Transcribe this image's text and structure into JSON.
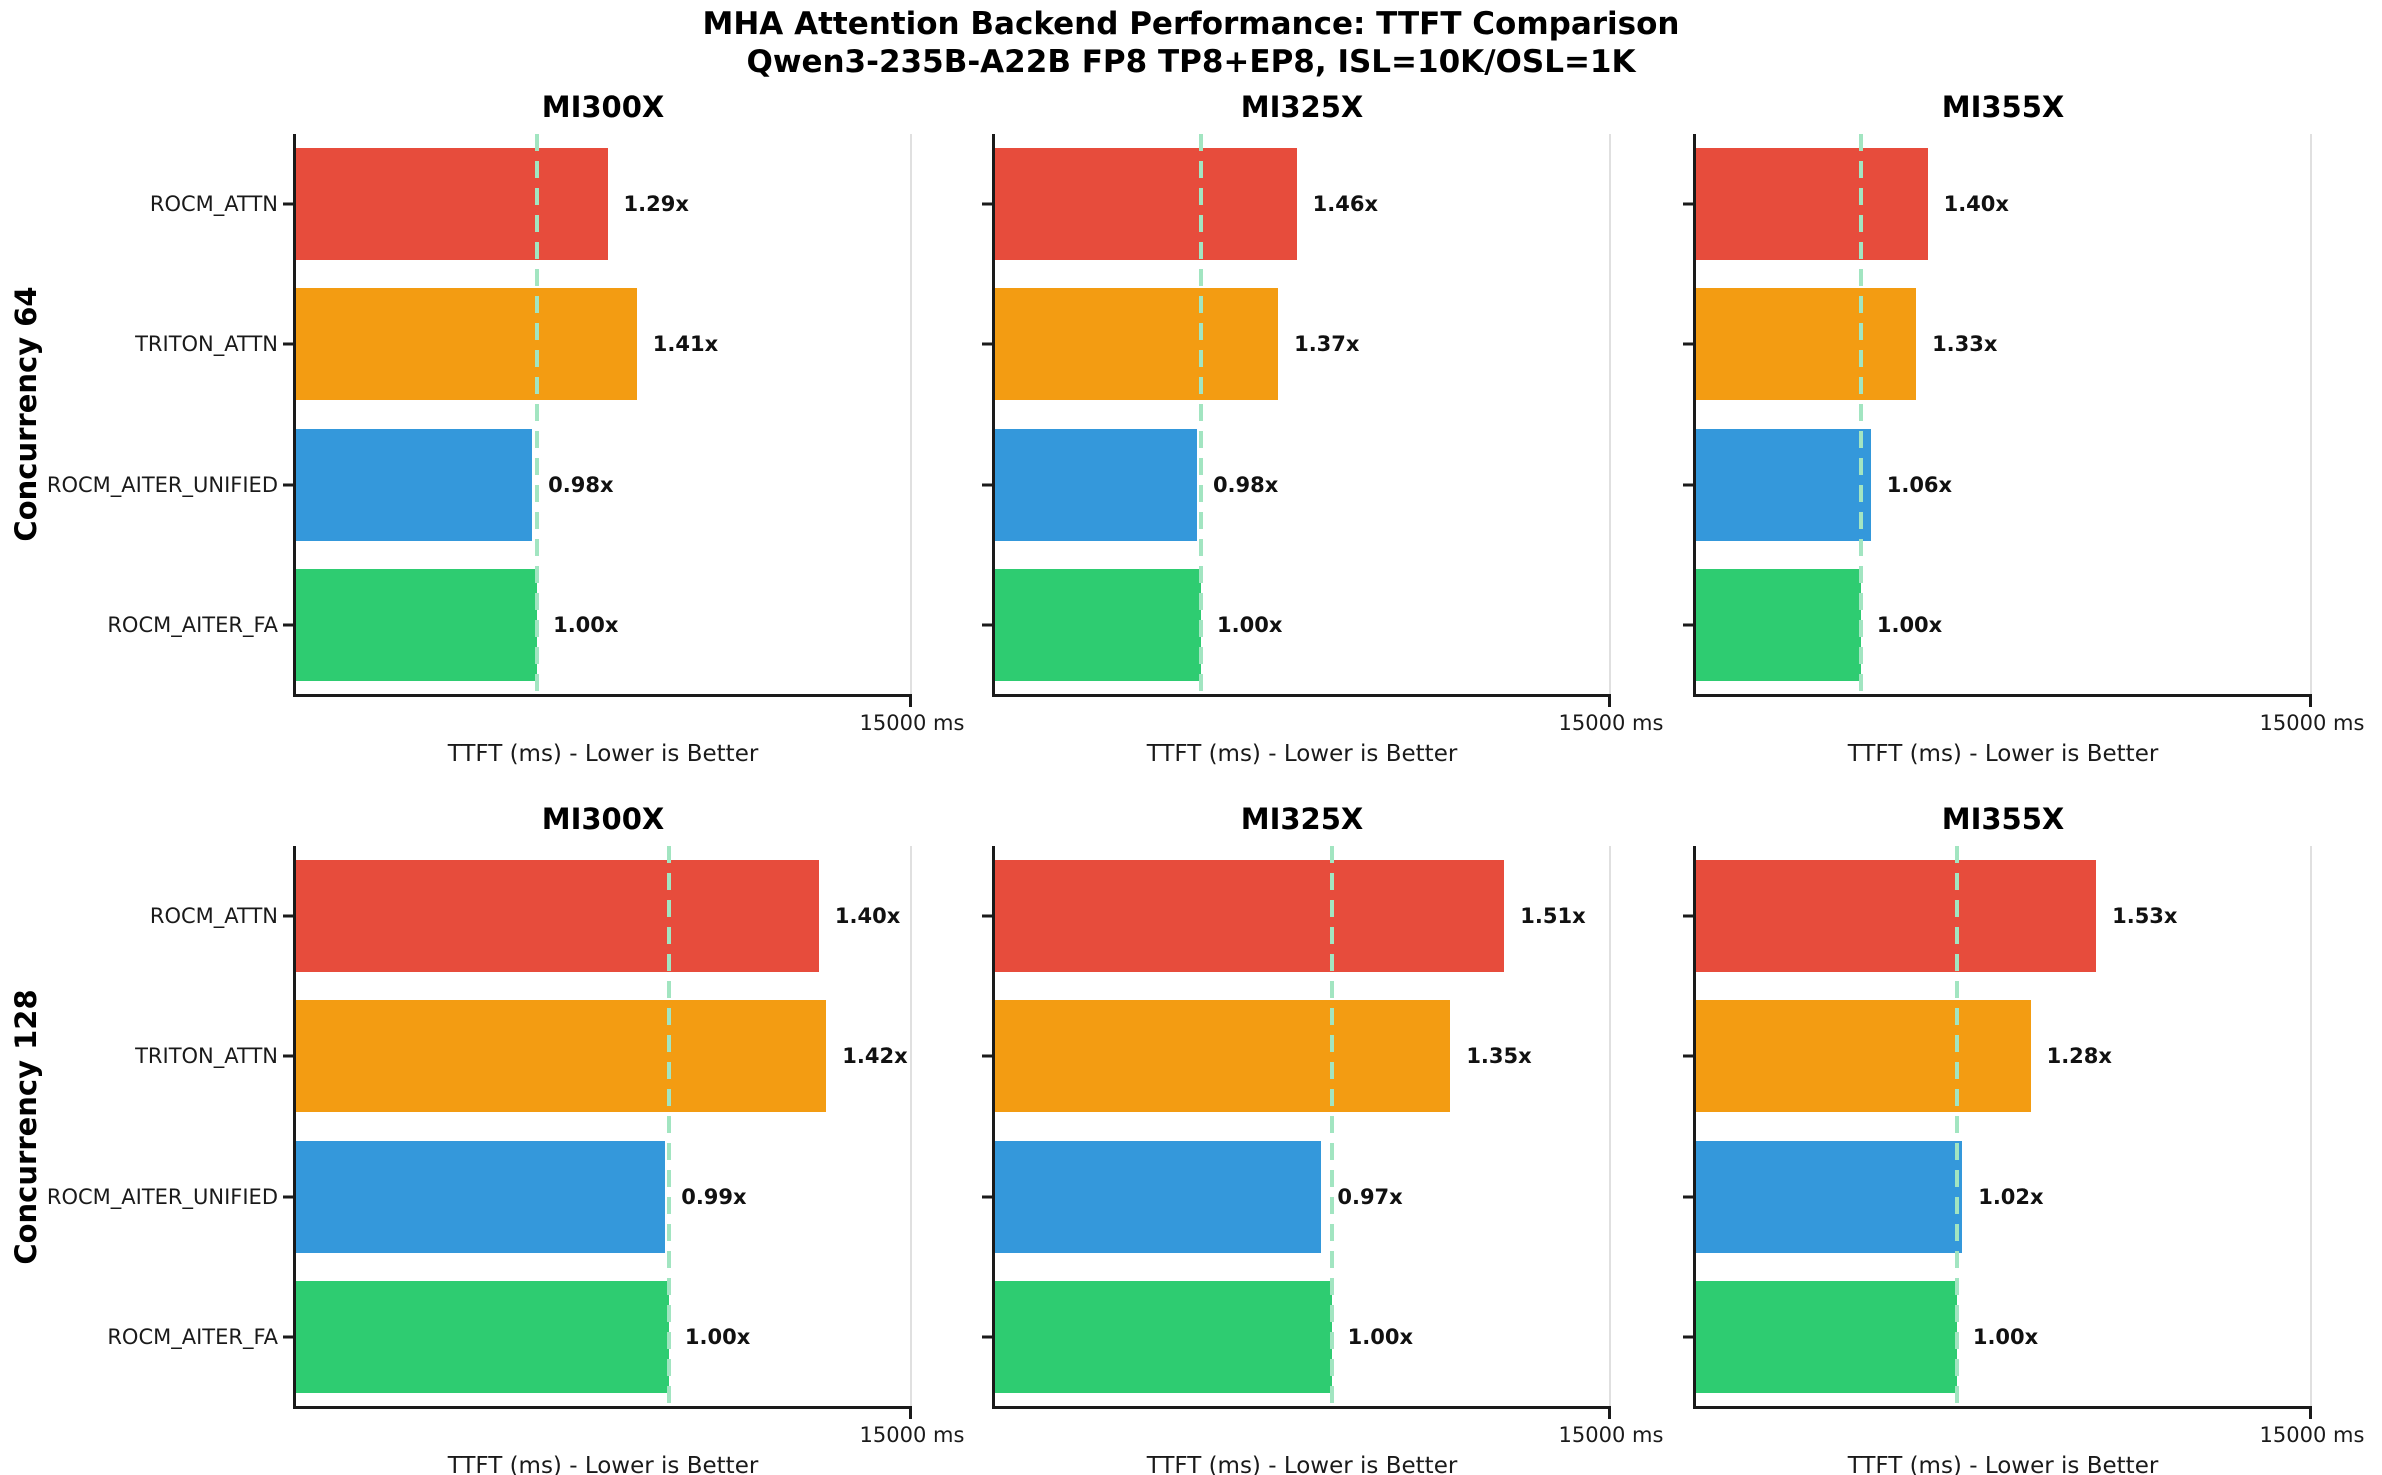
{
  "figure": {
    "title_line1": "MHA Attention Backend Performance: TTFT Comparison",
    "title_line2": "Qwen3-235B-A22B FP8 TP8+EP8, ISL=10K/OSL=1K"
  },
  "rows": [
    {
      "label": "Concurrency 64"
    },
    {
      "label": "Concurrency 128"
    }
  ],
  "axis": {
    "max_ms": 15000,
    "tick_label": "15000 ms",
    "xlabel": "TTFT (ms) - Lower is Better"
  },
  "categories": [
    "ROCM_ATTN",
    "TRITON_ATTN",
    "ROCM_AITER_UNIFIED",
    "ROCM_AITER_FA"
  ],
  "series_colors": [
    "#e74c3c",
    "#f39c12",
    "#3498db",
    "#2ecc71"
  ],
  "baseline_line_color": "#a2e5c1",
  "chart_data": [
    {
      "type": "bar",
      "orientation": "horizontal",
      "title": "MI300X",
      "gpu": "MI300X",
      "concurrency": 64,
      "categories": [
        "ROCM_ATTN",
        "TRITON_ATTN",
        "ROCM_AITER_UNIFIED",
        "ROCM_AITER_FA"
      ],
      "multipliers": [
        1.29,
        1.41,
        0.98,
        1.0
      ],
      "labels": [
        "1.29x",
        "1.41x",
        "0.98x",
        "1.00x"
      ],
      "values_ms": [
        7610,
        8320,
        5780,
        5900
      ],
      "baseline_ms": 5900,
      "xlim": [
        0,
        15000
      ]
    },
    {
      "type": "bar",
      "orientation": "horizontal",
      "title": "MI325X",
      "gpu": "MI325X",
      "concurrency": 64,
      "categories": [
        "ROCM_ATTN",
        "TRITON_ATTN",
        "ROCM_AITER_UNIFIED",
        "ROCM_AITER_FA"
      ],
      "multipliers": [
        1.46,
        1.37,
        0.98,
        1.0
      ],
      "labels": [
        "1.46x",
        "1.37x",
        "0.98x",
        "1.00x"
      ],
      "values_ms": [
        7370,
        6920,
        4950,
        5050
      ],
      "baseline_ms": 5050,
      "xlim": [
        0,
        15000
      ]
    },
    {
      "type": "bar",
      "orientation": "horizontal",
      "title": "MI355X",
      "gpu": "MI355X",
      "concurrency": 64,
      "categories": [
        "ROCM_ATTN",
        "TRITON_ATTN",
        "ROCM_AITER_UNIFIED",
        "ROCM_AITER_FA"
      ],
      "multipliers": [
        1.4,
        1.33,
        1.06,
        1.0
      ],
      "labels": [
        "1.40x",
        "1.33x",
        "1.06x",
        "1.00x"
      ],
      "values_ms": [
        5670,
        5390,
        4290,
        4050
      ],
      "baseline_ms": 4050,
      "xlim": [
        0,
        15000
      ]
    },
    {
      "type": "bar",
      "orientation": "horizontal",
      "title": "MI300X",
      "gpu": "MI300X",
      "concurrency": 128,
      "categories": [
        "ROCM_ATTN",
        "TRITON_ATTN",
        "ROCM_AITER_UNIFIED",
        "ROCM_AITER_FA"
      ],
      "multipliers": [
        1.4,
        1.42,
        0.99,
        1.0
      ],
      "labels": [
        "1.40x",
        "1.42x",
        "0.99x",
        "1.00x"
      ],
      "values_ms": [
        12740,
        12920,
        9010,
        9100
      ],
      "baseline_ms": 9100,
      "xlim": [
        0,
        15000
      ]
    },
    {
      "type": "bar",
      "orientation": "horizontal",
      "title": "MI325X",
      "gpu": "MI325X",
      "concurrency": 128,
      "categories": [
        "ROCM_ATTN",
        "TRITON_ATTN",
        "ROCM_AITER_UNIFIED",
        "ROCM_AITER_FA"
      ],
      "multipliers": [
        1.51,
        1.35,
        0.97,
        1.0
      ],
      "labels": [
        "1.51x",
        "1.35x",
        "0.97x",
        "1.00x"
      ],
      "values_ms": [
        12410,
        11100,
        7970,
        8220
      ],
      "baseline_ms": 8220,
      "xlim": [
        0,
        15000
      ]
    },
    {
      "type": "bar",
      "orientation": "horizontal",
      "title": "MI355X",
      "gpu": "MI355X",
      "concurrency": 128,
      "categories": [
        "ROCM_ATTN",
        "TRITON_ATTN",
        "ROCM_AITER_UNIFIED",
        "ROCM_AITER_FA"
      ],
      "multipliers": [
        1.53,
        1.28,
        1.02,
        1.0
      ],
      "labels": [
        "1.53x",
        "1.28x",
        "1.02x",
        "1.00x"
      ],
      "values_ms": [
        9760,
        8170,
        6510,
        6380
      ],
      "baseline_ms": 6380,
      "xlim": [
        0,
        15000
      ]
    }
  ]
}
